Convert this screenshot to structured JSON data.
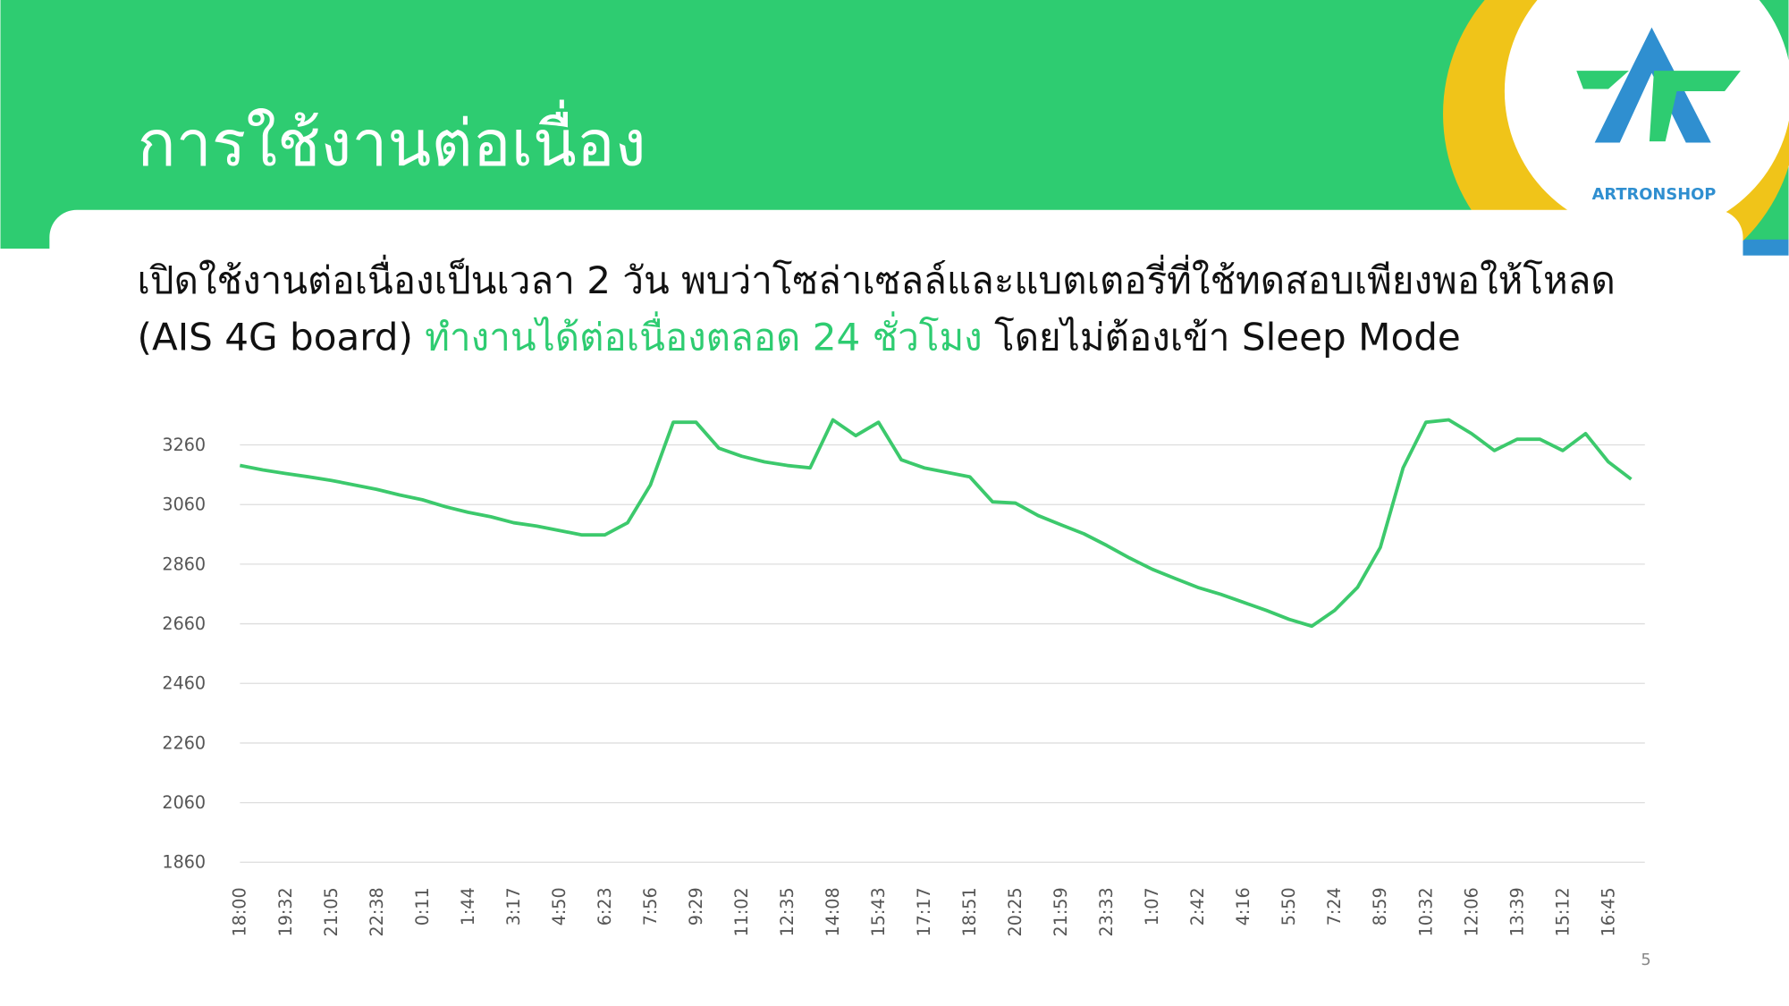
{
  "header": {
    "title": "การใช้งานต่อเนื่อง",
    "logo_text": "ARTRONSHOP"
  },
  "description": {
    "line1": "เปิดใช้งานต่อเนื่องเป็นเวลา 2 วัน พบว่าโซล่าเซลล์และแบตเตอรี่ที่ใช้ทดสอบเพียงพอให้โหลด",
    "line2": [
      "(AIS 4G board) ",
      "ทำงานได้ต่อเนื่องตลอด 24 ชั่วโมง",
      " โดยไม่ต้องเข้า Sleep Mode"
    ]
  },
  "page_number": "5",
  "chart_data": {
    "type": "line",
    "color": "#3cc96c",
    "grid": true,
    "categories": [
      "18:00",
      null,
      "19:32",
      null,
      "21:05",
      null,
      "22:38",
      null,
      "0:11",
      null,
      "1:44",
      null,
      "3:17",
      null,
      "4:50",
      null,
      "6:23",
      null,
      "7:56",
      null,
      "9:29",
      null,
      "11:02",
      null,
      "12:35",
      null,
      "14:08",
      null,
      "15:43",
      null,
      "17:17",
      null,
      "18:51",
      null,
      "20:25",
      null,
      "21:59",
      null,
      "23:33",
      null,
      "1:07",
      null,
      "2:42",
      null,
      "4:16",
      null,
      "5:50",
      null,
      "7:24",
      null,
      "8:59",
      null,
      "10:32",
      null,
      "12:06",
      null,
      "13:39",
      null,
      "15:12",
      null,
      "16:45",
      null
    ],
    "values": [
      3191,
      3176,
      3164,
      3153,
      3141,
      3126,
      3111,
      3092,
      3076,
      3053,
      3034,
      3019,
      2999,
      2988,
      2973,
      2958,
      2958,
      2999,
      3126,
      3336,
      3336,
      3249,
      3222,
      3203,
      3191,
      3183,
      3344,
      3291,
      3336,
      3210,
      3183,
      3168,
      3153,
      3069,
      3065,
      3023,
      2992,
      2962,
      2923,
      2881,
      2843,
      2812,
      2782,
      2759,
      2732,
      2705,
      2675,
      2652,
      2705,
      2782,
      2916,
      3183,
      3336,
      3344,
      3298,
      3241,
      3279,
      3279,
      3241,
      3298,
      3203,
      3145
    ],
    "ylim": [
      1860,
      3380
    ],
    "yticks": [
      1860,
      2060,
      2260,
      2460,
      2660,
      2860,
      3060,
      3260
    ]
  }
}
